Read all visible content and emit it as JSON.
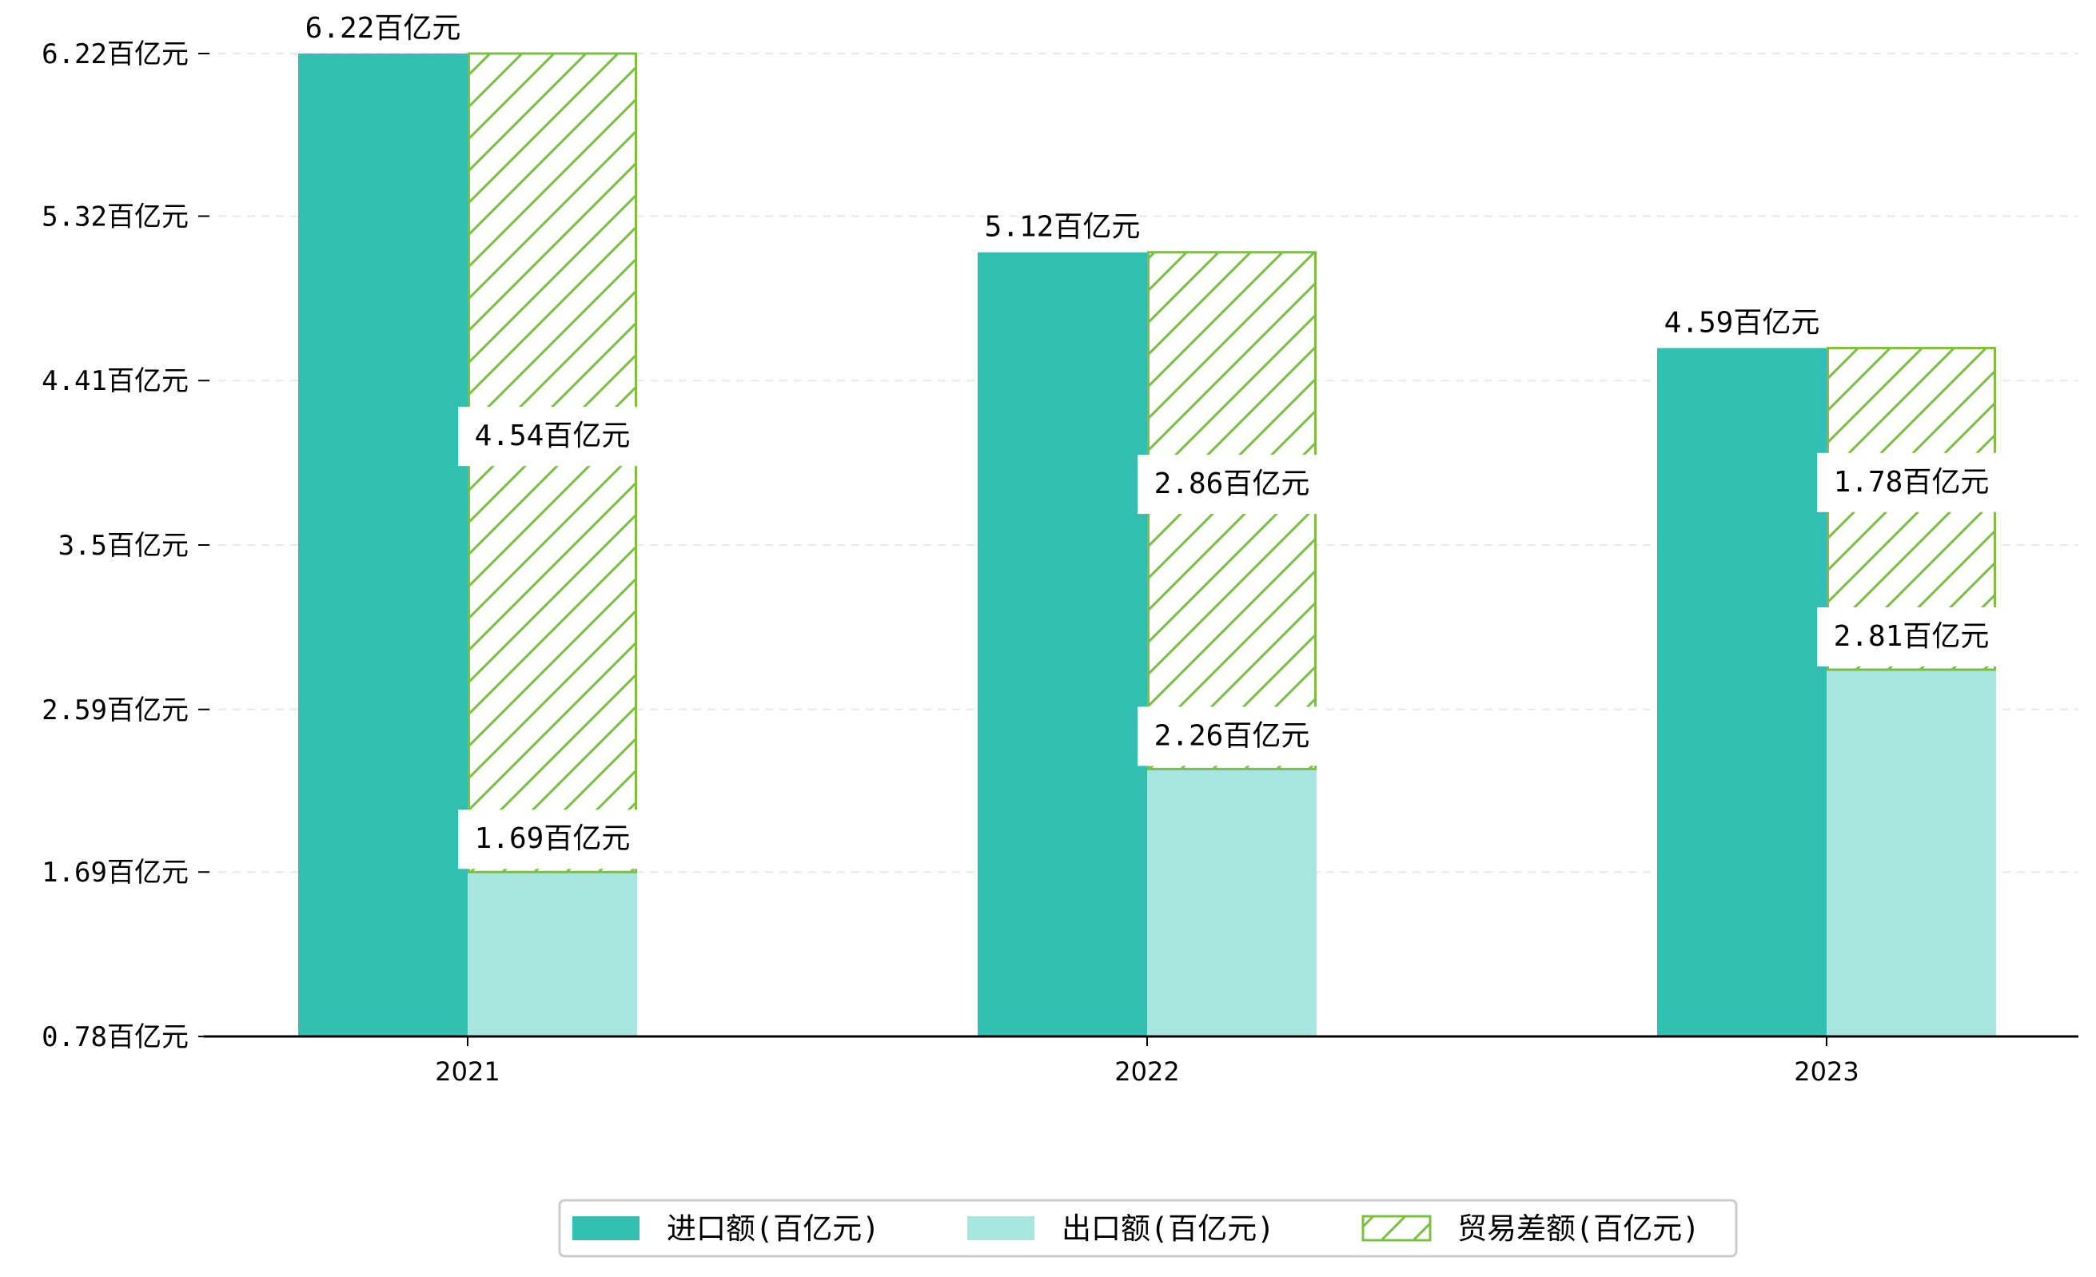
{
  "chart_data": {
    "type": "bar",
    "categories": [
      "2021",
      "2022",
      "2023"
    ],
    "series": [
      {
        "name": "进口额(百亿元)",
        "values": [
          6.22,
          5.12,
          4.59
        ],
        "color": "#31bfb1",
        "labels": [
          "6.22百亿元",
          "5.12百亿元",
          "4.59百亿元"
        ]
      },
      {
        "name": "出口额(百亿元)",
        "values": [
          1.69,
          2.26,
          2.81
        ],
        "color": "#a8e6e0",
        "labels": [
          "1.69百亿元",
          "2.26百亿元",
          "2.81百亿元"
        ]
      },
      {
        "name": "贸易差额(百亿元)",
        "values": [
          4.54,
          2.86,
          1.78
        ],
        "color": "#7bc043",
        "pattern": "hatch",
        "stacked_on": "出口额(百亿元)",
        "labels": [
          "4.54百亿元",
          "2.86百亿元",
          "1.78百亿元"
        ]
      }
    ],
    "yticks": [
      0.78,
      1.69,
      2.59,
      3.5,
      4.41,
      5.32,
      6.22
    ],
    "ytick_labels": [
      "0.78百亿元",
      "1.69百亿元",
      "2.59百亿元",
      "3.5百亿元",
      "4.41百亿元",
      "5.32百亿元",
      "6.22百亿元"
    ],
    "ylim": [
      0.78,
      6.22
    ],
    "grid": "horizontal-dashed",
    "legend_position": "bottom-center"
  }
}
